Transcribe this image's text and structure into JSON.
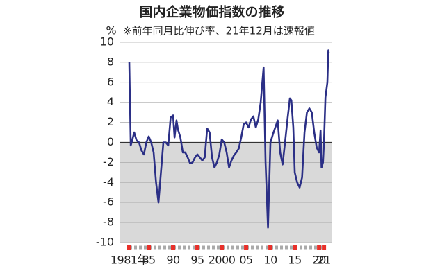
{
  "chart_data": {
    "type": "line",
    "title": "国内企業物価指数の推移",
    "subtitle": "※前年同月比伸び率、21年12月は速報値",
    "y_unit": "%",
    "x": [
      1981.0,
      1981.3,
      1981.6,
      1982,
      1982.5,
      1983,
      1983.5,
      1984,
      1984.5,
      1985,
      1985.5,
      1986,
      1986.5,
      1987,
      1987.5,
      1988,
      1988.5,
      1989,
      1989.5,
      1990,
      1990.3,
      1990.7,
      1991,
      1991.5,
      1992,
      1992.5,
      1993,
      1993.5,
      1994,
      1994.5,
      1995,
      1995.5,
      1996,
      1996.5,
      1997,
      1997.5,
      1998,
      1998.5,
      1999,
      1999.5,
      2000,
      2000.5,
      2001,
      2001.5,
      2002,
      2002.5,
      2003,
      2003.5,
      2004,
      2004.5,
      2005,
      2005.5,
      2006,
      2006.5,
      2007,
      2007.5,
      2008,
      2008.6,
      2009,
      2009.5,
      2010,
      2010.5,
      2011,
      2011.5,
      2012,
      2012.5,
      2013,
      2013.5,
      2014,
      2014.3,
      2014.7,
      2015,
      2015.5,
      2016,
      2016.5,
      2017,
      2017.5,
      2018,
      2018.5,
      2019,
      2019.5,
      2020,
      2020.3,
      2020.5,
      2020.8,
      2021,
      2021.3,
      2021.7,
      2021.9,
      2022
    ],
    "series": [
      {
        "name": "国内企業物価指数",
        "color": "#2b2f86",
        "values": [
          8,
          -0.3,
          0.2,
          1,
          0.2,
          0,
          -0.8,
          -1.2,
          0,
          0.6,
          0,
          -1,
          -4,
          -6,
          -3,
          0,
          0,
          -0.3,
          2.5,
          2.7,
          0.5,
          2.2,
          1.3,
          0.5,
          -1,
          -1,
          -1.5,
          -2.1,
          -2,
          -1.5,
          -1.2,
          -1.5,
          -1.8,
          -1.5,
          1.4,
          1,
          -1.5,
          -2.5,
          -2,
          -1.2,
          0.3,
          0,
          -1,
          -2.5,
          -1.8,
          -1.3,
          -1,
          -0.6,
          0.5,
          1.8,
          2,
          1.5,
          2.3,
          2.6,
          1.5,
          2.3,
          4,
          7.5,
          -2,
          -8.5,
          0,
          0.8,
          1.5,
          2.2,
          -1,
          -2.2,
          0,
          2.3,
          4.4,
          4.2,
          1.5,
          -3,
          -4,
          -4.5,
          -3.5,
          1,
          3,
          3.4,
          3,
          1,
          -0.5,
          -1,
          1.2,
          -2.5,
          -2,
          0,
          4.5,
          6,
          9.2,
          8.9
        ]
      }
    ],
    "xlim": [
      1979,
      2022.7
    ],
    "xticks": [
      {
        "value": 1981,
        "label": "1981年"
      },
      {
        "value": 1985,
        "label": "85"
      },
      {
        "value": 1990,
        "label": "90"
      },
      {
        "value": 1995,
        "label": "95"
      },
      2000,
      {
        "value": 2005,
        "label": "05"
      },
      {
        "value": 2010,
        "label": "10"
      },
      {
        "value": 2015,
        "label": "15"
      },
      {
        "value": 2020,
        "label": "20"
      },
      {
        "value": 2021,
        "label": "21"
      }
    ],
    "ylim": [
      -10,
      10
    ],
    "yticks": [
      10,
      8,
      6,
      4,
      2,
      0,
      -2,
      -4,
      -6,
      -8,
      -10
    ],
    "grid": true
  }
}
